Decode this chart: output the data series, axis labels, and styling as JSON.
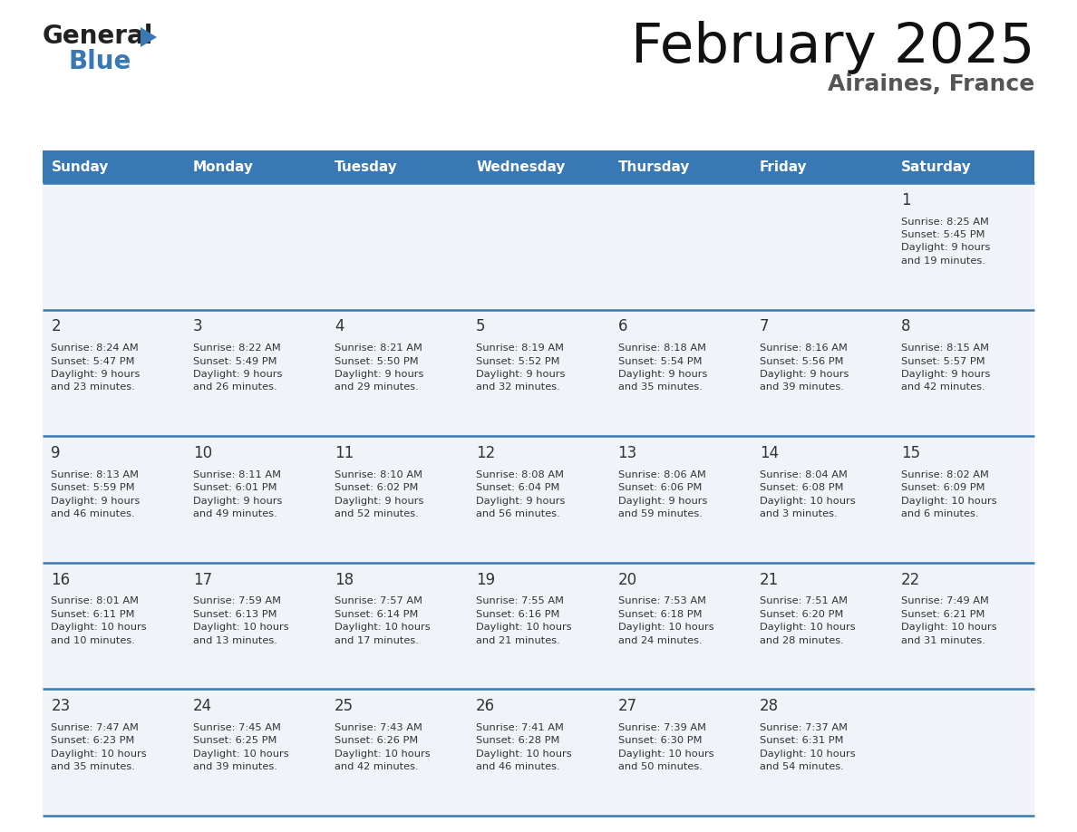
{
  "title": "February 2025",
  "subtitle": "Airaines, France",
  "header_bg_color": "#3878b4",
  "header_text_color": "#ffffff",
  "cell_bg_color": "#f0f4f8",
  "cell_text_color": "#333333",
  "day_number_color": "#333333",
  "separator_color": "#3878b4",
  "logo_general_color": "#222222",
  "logo_blue_color": "#3878b4",
  "logo_triangle_color": "#3878b4",
  "subtitle_color": "#555555",
  "days_of_week": [
    "Sunday",
    "Monday",
    "Tuesday",
    "Wednesday",
    "Thursday",
    "Friday",
    "Saturday"
  ],
  "weeks": [
    [
      {
        "day": null,
        "text": ""
      },
      {
        "day": null,
        "text": ""
      },
      {
        "day": null,
        "text": ""
      },
      {
        "day": null,
        "text": ""
      },
      {
        "day": null,
        "text": ""
      },
      {
        "day": null,
        "text": ""
      },
      {
        "day": 1,
        "text": "Sunrise: 8:25 AM\nSunset: 5:45 PM\nDaylight: 9 hours\nand 19 minutes."
      }
    ],
    [
      {
        "day": 2,
        "text": "Sunrise: 8:24 AM\nSunset: 5:47 PM\nDaylight: 9 hours\nand 23 minutes."
      },
      {
        "day": 3,
        "text": "Sunrise: 8:22 AM\nSunset: 5:49 PM\nDaylight: 9 hours\nand 26 minutes."
      },
      {
        "day": 4,
        "text": "Sunrise: 8:21 AM\nSunset: 5:50 PM\nDaylight: 9 hours\nand 29 minutes."
      },
      {
        "day": 5,
        "text": "Sunrise: 8:19 AM\nSunset: 5:52 PM\nDaylight: 9 hours\nand 32 minutes."
      },
      {
        "day": 6,
        "text": "Sunrise: 8:18 AM\nSunset: 5:54 PM\nDaylight: 9 hours\nand 35 minutes."
      },
      {
        "day": 7,
        "text": "Sunrise: 8:16 AM\nSunset: 5:56 PM\nDaylight: 9 hours\nand 39 minutes."
      },
      {
        "day": 8,
        "text": "Sunrise: 8:15 AM\nSunset: 5:57 PM\nDaylight: 9 hours\nand 42 minutes."
      }
    ],
    [
      {
        "day": 9,
        "text": "Sunrise: 8:13 AM\nSunset: 5:59 PM\nDaylight: 9 hours\nand 46 minutes."
      },
      {
        "day": 10,
        "text": "Sunrise: 8:11 AM\nSunset: 6:01 PM\nDaylight: 9 hours\nand 49 minutes."
      },
      {
        "day": 11,
        "text": "Sunrise: 8:10 AM\nSunset: 6:02 PM\nDaylight: 9 hours\nand 52 minutes."
      },
      {
        "day": 12,
        "text": "Sunrise: 8:08 AM\nSunset: 6:04 PM\nDaylight: 9 hours\nand 56 minutes."
      },
      {
        "day": 13,
        "text": "Sunrise: 8:06 AM\nSunset: 6:06 PM\nDaylight: 9 hours\nand 59 minutes."
      },
      {
        "day": 14,
        "text": "Sunrise: 8:04 AM\nSunset: 6:08 PM\nDaylight: 10 hours\nand 3 minutes."
      },
      {
        "day": 15,
        "text": "Sunrise: 8:02 AM\nSunset: 6:09 PM\nDaylight: 10 hours\nand 6 minutes."
      }
    ],
    [
      {
        "day": 16,
        "text": "Sunrise: 8:01 AM\nSunset: 6:11 PM\nDaylight: 10 hours\nand 10 minutes."
      },
      {
        "day": 17,
        "text": "Sunrise: 7:59 AM\nSunset: 6:13 PM\nDaylight: 10 hours\nand 13 minutes."
      },
      {
        "day": 18,
        "text": "Sunrise: 7:57 AM\nSunset: 6:14 PM\nDaylight: 10 hours\nand 17 minutes."
      },
      {
        "day": 19,
        "text": "Sunrise: 7:55 AM\nSunset: 6:16 PM\nDaylight: 10 hours\nand 21 minutes."
      },
      {
        "day": 20,
        "text": "Sunrise: 7:53 AM\nSunset: 6:18 PM\nDaylight: 10 hours\nand 24 minutes."
      },
      {
        "day": 21,
        "text": "Sunrise: 7:51 AM\nSunset: 6:20 PM\nDaylight: 10 hours\nand 28 minutes."
      },
      {
        "day": 22,
        "text": "Sunrise: 7:49 AM\nSunset: 6:21 PM\nDaylight: 10 hours\nand 31 minutes."
      }
    ],
    [
      {
        "day": 23,
        "text": "Sunrise: 7:47 AM\nSunset: 6:23 PM\nDaylight: 10 hours\nand 35 minutes."
      },
      {
        "day": 24,
        "text": "Sunrise: 7:45 AM\nSunset: 6:25 PM\nDaylight: 10 hours\nand 39 minutes."
      },
      {
        "day": 25,
        "text": "Sunrise: 7:43 AM\nSunset: 6:26 PM\nDaylight: 10 hours\nand 42 minutes."
      },
      {
        "day": 26,
        "text": "Sunrise: 7:41 AM\nSunset: 6:28 PM\nDaylight: 10 hours\nand 46 minutes."
      },
      {
        "day": 27,
        "text": "Sunrise: 7:39 AM\nSunset: 6:30 PM\nDaylight: 10 hours\nand 50 minutes."
      },
      {
        "day": 28,
        "text": "Sunrise: 7:37 AM\nSunset: 6:31 PM\nDaylight: 10 hours\nand 54 minutes."
      },
      {
        "day": null,
        "text": ""
      }
    ]
  ]
}
